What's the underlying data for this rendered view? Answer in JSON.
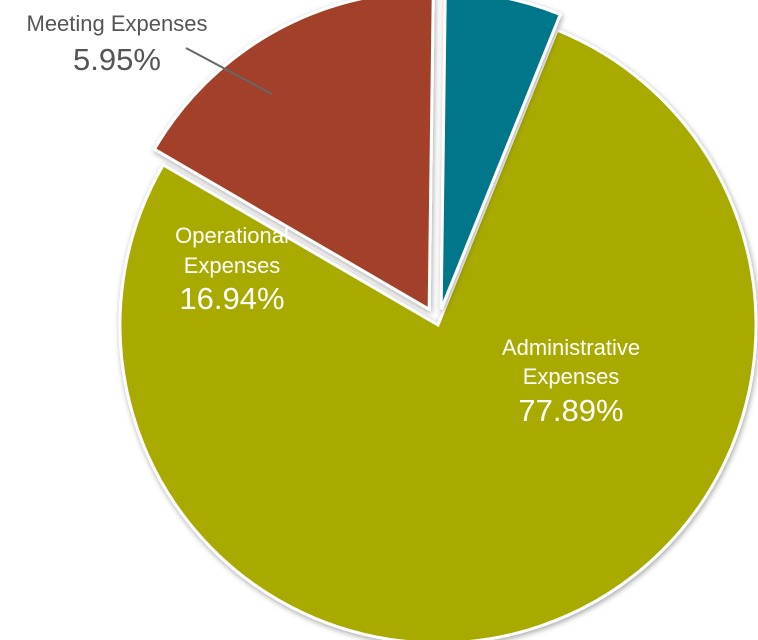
{
  "chart_data": {
    "type": "pie",
    "title": "",
    "slices": [
      {
        "label_line1": "Administrative",
        "label_line2": "Expenses",
        "value": 77.89,
        "value_label": "77.89%",
        "color": "#A8AA00",
        "label_color": "#ffffff"
      },
      {
        "label_line1": "Operational",
        "label_line2": "Expenses",
        "value": 16.94,
        "value_label": "16.94%",
        "color": "#A3402B",
        "label_color": "#ffffff"
      },
      {
        "label_line1": "Meeting Expenses",
        "label_line2": "",
        "value": 5.95,
        "value_label": "5.95%",
        "color": "#03768A",
        "label_color": "#555555"
      }
    ],
    "legend": "none",
    "labels": "inside slices; small slice labeled outside with leader line",
    "exploded": true
  }
}
